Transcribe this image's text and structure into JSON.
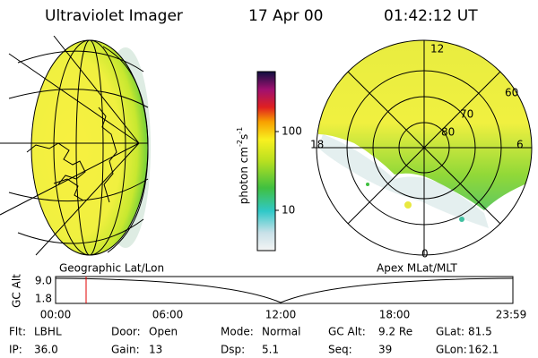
{
  "header": {
    "title": "Ultraviolet Imager",
    "date": "17 Apr 00",
    "time": "01:42:12 UT"
  },
  "colorbar": {
    "label": {
      "unit": "photon cm",
      "exp1": "-2",
      "unit2": "s",
      "exp2": "-1"
    },
    "ticks": [
      "100",
      "10"
    ]
  },
  "polar": {
    "mlt_labels": [
      "12",
      "18",
      "6",
      "0"
    ],
    "lat_labels": [
      "60",
      "70",
      "80"
    ]
  },
  "captions": {
    "left": "Geographic Lat/Lon",
    "right": "Apex MLat/MLT"
  },
  "orbit_plot": {
    "ylabel": "GC Alt",
    "yticks": [
      "9.0",
      "1.8"
    ],
    "xticks": [
      "00:00",
      "06:00",
      "12:00",
      "18:00",
      "23:59"
    ]
  },
  "footer": {
    "rows": [
      [
        {
          "label": "Flt:",
          "value": "LBHL"
        },
        {
          "label": "Door:",
          "value": "Open"
        },
        {
          "label": "Mode:",
          "value": "Normal"
        },
        {
          "label": "GC Alt:",
          "value": "9.2 Re"
        },
        {
          "label": "GLat:",
          "value": "81.5"
        }
      ],
      [
        {
          "label": "IP:",
          "value": "36.0"
        },
        {
          "label": "Gain:",
          "value": "13"
        },
        {
          "label": "Dsp:",
          "value": "5.1"
        },
        {
          "label": "Seq:",
          "value": "39"
        },
        {
          "label": "GLon:",
          "value": "162.1"
        }
      ]
    ]
  }
}
